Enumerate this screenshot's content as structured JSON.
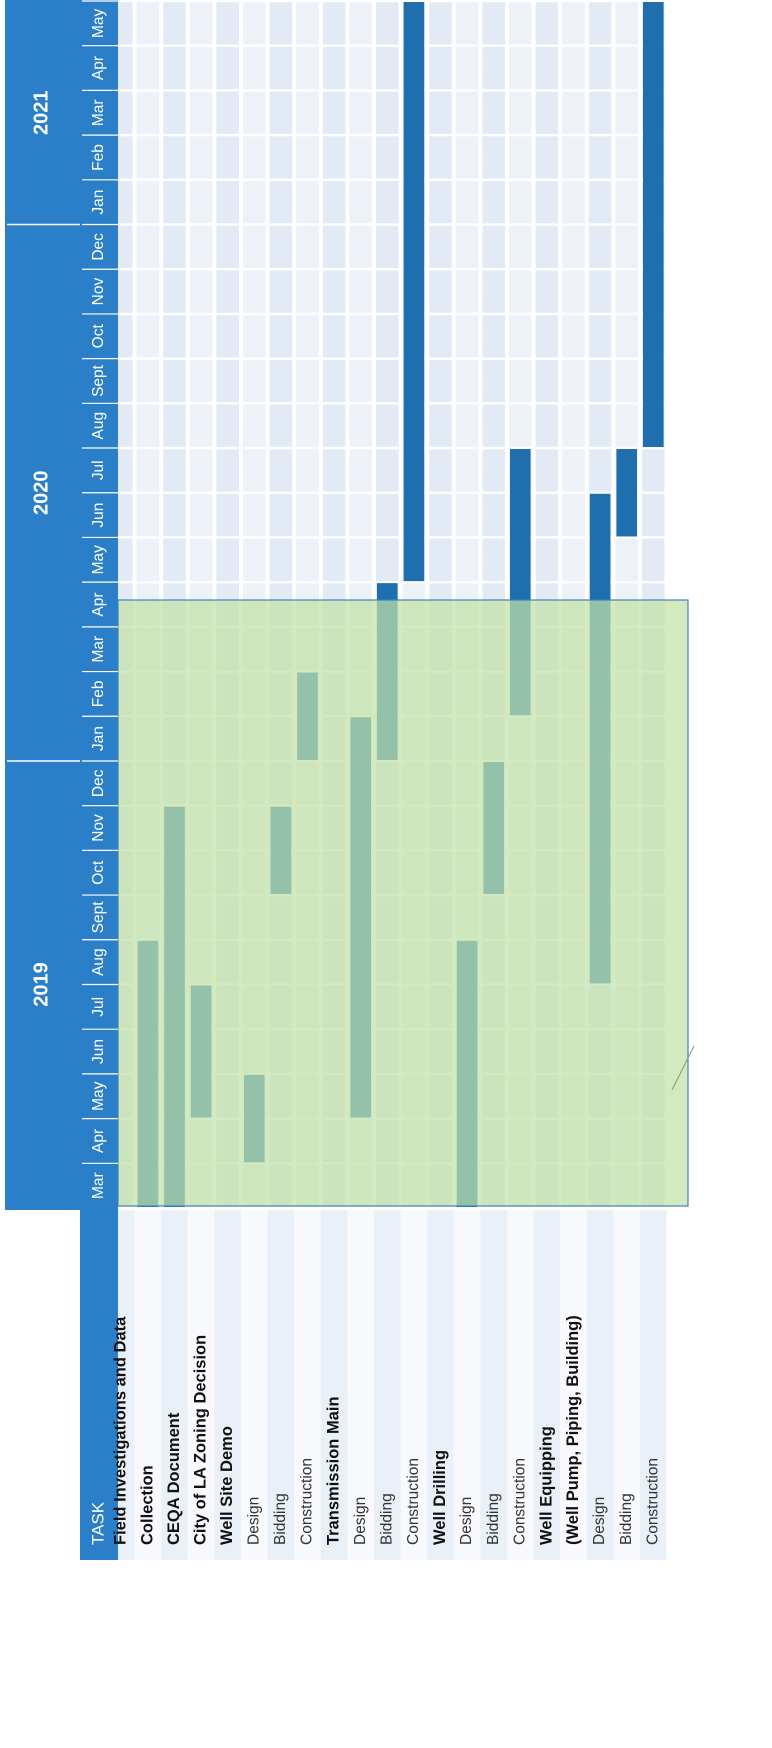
{
  "chart_data": {
    "type": "gantt",
    "header": {
      "task_label": "TASK",
      "years": [
        {
          "label": "2019",
          "span": [
            0,
            9
          ]
        },
        {
          "label": "2020",
          "span": [
            10,
            21
          ]
        },
        {
          "label": "2021",
          "span": [
            22,
            26
          ]
        }
      ],
      "months": [
        "Mar",
        "Apr",
        "May",
        "Jun",
        "Jul",
        "Aug",
        "Sept",
        "Oct",
        "Nov",
        "Dec",
        "Jan",
        "Feb",
        "Mar",
        "Apr",
        "May",
        "Jun",
        "Jul",
        "Aug",
        "Sept",
        "Oct",
        "Nov",
        "Dec",
        "Jan",
        "Feb",
        "Mar",
        "Apr",
        "May"
      ]
    },
    "tasks": [
      {
        "label": "Field Investigations and Data",
        "bold": true,
        "bars": []
      },
      {
        "label": "Collection",
        "bold": true,
        "bars": [
          [
            0,
            5
          ]
        ]
      },
      {
        "label": "CEQA Document",
        "bold": true,
        "bars": [
          [
            0,
            8
          ]
        ]
      },
      {
        "label": "City of LA Zoning Decision",
        "bold": true,
        "bars": [
          [
            2,
            4
          ]
        ]
      },
      {
        "label": "Well Site Demo",
        "bold": true,
        "bars": []
      },
      {
        "label": "Design",
        "bold": false,
        "bars": [
          [
            1,
            2
          ]
        ]
      },
      {
        "label": "Bidding",
        "bold": false,
        "bars": [
          [
            7,
            8
          ]
        ]
      },
      {
        "label": "Construction",
        "bold": false,
        "bars": [
          [
            10,
            11
          ]
        ]
      },
      {
        "label": "Transmission Main",
        "bold": true,
        "bars": []
      },
      {
        "label": "Design",
        "bold": false,
        "bars": [
          [
            2,
            10
          ]
        ]
      },
      {
        "label": "Bidding",
        "bold": false,
        "bars": [
          [
            10,
            13
          ]
        ]
      },
      {
        "label": "Construction",
        "bold": false,
        "bars": [
          [
            14,
            26
          ]
        ]
      },
      {
        "label": "Well Drilling",
        "bold": true,
        "bars": []
      },
      {
        "label": "Design",
        "bold": false,
        "bars": [
          [
            0,
            5
          ]
        ]
      },
      {
        "label": "Bidding",
        "bold": false,
        "bars": [
          [
            7,
            9
          ]
        ]
      },
      {
        "label": "Construction",
        "bold": false,
        "bars": [
          [
            11,
            16
          ]
        ]
      },
      {
        "label": "Well Equipping",
        "bold": true,
        "bars": []
      },
      {
        "label": "(Well Pump, Piping, Building)",
        "bold": true,
        "bars": []
      },
      {
        "label": "Design",
        "bold": false,
        "bars": [
          [
            5,
            15
          ]
        ]
      },
      {
        "label": "Bidding",
        "bold": false,
        "bars": [
          [
            15,
            16
          ]
        ]
      },
      {
        "label": "Construction",
        "bold": false,
        "bars": [
          [
            17,
            26
          ]
        ]
      }
    ],
    "colors": {
      "header": "#2b7fc8",
      "bar": "#1f6fae",
      "row_light": "#e6edf6",
      "row_alt": "#ffffff",
      "overlay": "#c2e0a8",
      "overlay_border": "#3a86b8"
    }
  }
}
